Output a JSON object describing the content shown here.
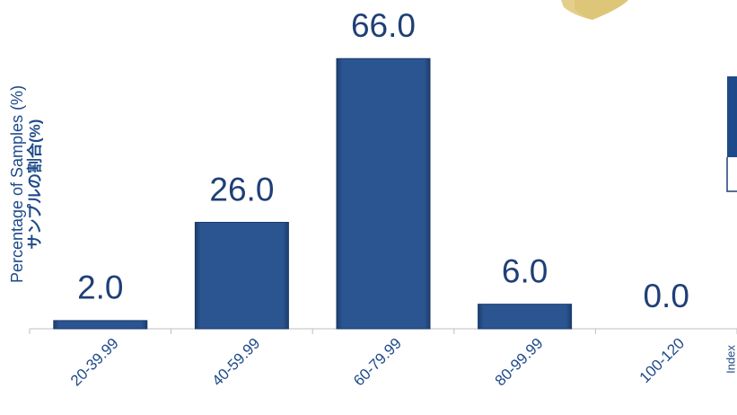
{
  "chart_data": {
    "type": "bar",
    "y_label": [
      "Percentage of Samples (%)",
      "サンプルの割合(%)"
    ],
    "x_label": "Index",
    "categories": [
      "20-39.99",
      "40-59.99",
      "60-79.99",
      "80-99.99",
      "100-120"
    ],
    "values": [
      2.0,
      26.0,
      66.0,
      6.0,
      0.0
    ],
    "value_labels": [
      "2.0",
      "26.0",
      "66.0",
      "6.0",
      "0.0"
    ],
    "color": "#2b5591",
    "ylim": [
      0,
      70
    ]
  }
}
